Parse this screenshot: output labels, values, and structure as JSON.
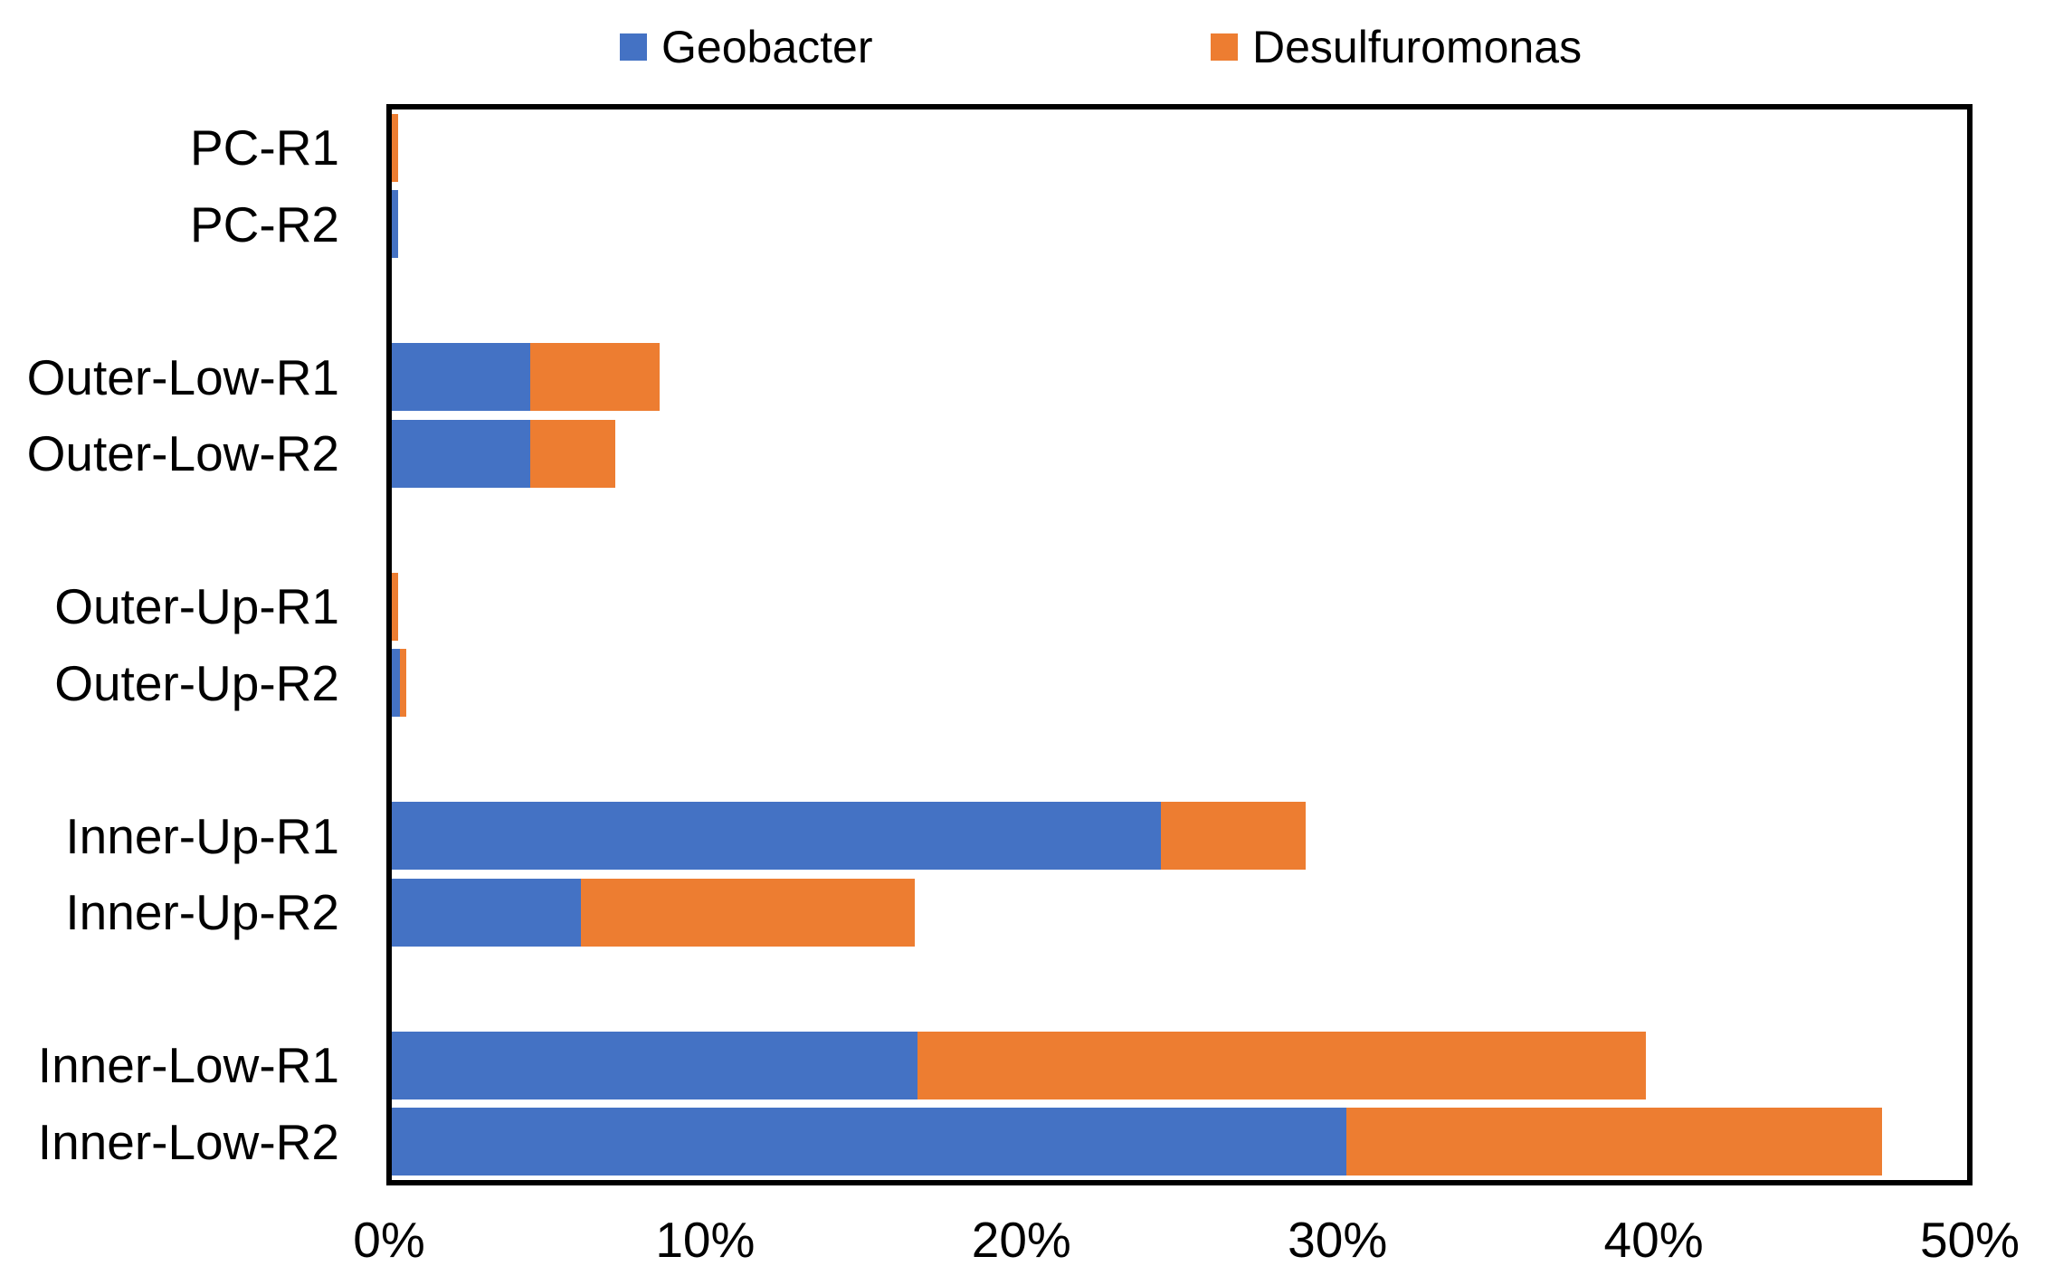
{
  "legend": {
    "position": "top",
    "items": [
      {
        "label": "Geobacter",
        "color": "#4472C4"
      },
      {
        "label": "Desulfuromonas",
        "color": "#ED7D31"
      }
    ]
  },
  "chart_data": {
    "type": "bar",
    "orientation": "horizontal",
    "stacked": true,
    "unit": "percent",
    "title": "",
    "xlabel": "",
    "ylabel": "",
    "grid": false,
    "legend_position": "top",
    "xlim": [
      0,
      50
    ],
    "x_ticks": [
      "0%",
      "10%",
      "20%",
      "30%",
      "40%",
      "50%"
    ],
    "categories": [
      "PC-R1",
      "PC-R2",
      "Outer-Low-R1",
      "Outer-Low-R2",
      "Outer-Up-R1",
      "Outer-Up-R2",
      "Inner-Up-R1",
      "Inner-Up-R2",
      "Inner-Low-R1",
      "Inner-Low-R2"
    ],
    "series": [
      {
        "name": "Geobacter",
        "color": "#4472C4",
        "values": [
          0,
          0.2,
          4.4,
          4.4,
          0,
          0.25,
          24.4,
          6.0,
          16.7,
          30.3
        ]
      },
      {
        "name": "Desulfuromonas",
        "color": "#ED7D31",
        "values": [
          0.2,
          0,
          4.1,
          2.7,
          0.2,
          0.2,
          4.6,
          10.6,
          23.1,
          17.0
        ]
      }
    ],
    "row_layout": [
      0,
      1,
      null,
      2,
      3,
      null,
      4,
      5,
      null,
      6,
      7,
      null,
      8,
      9
    ],
    "axis_color": "#000000"
  }
}
